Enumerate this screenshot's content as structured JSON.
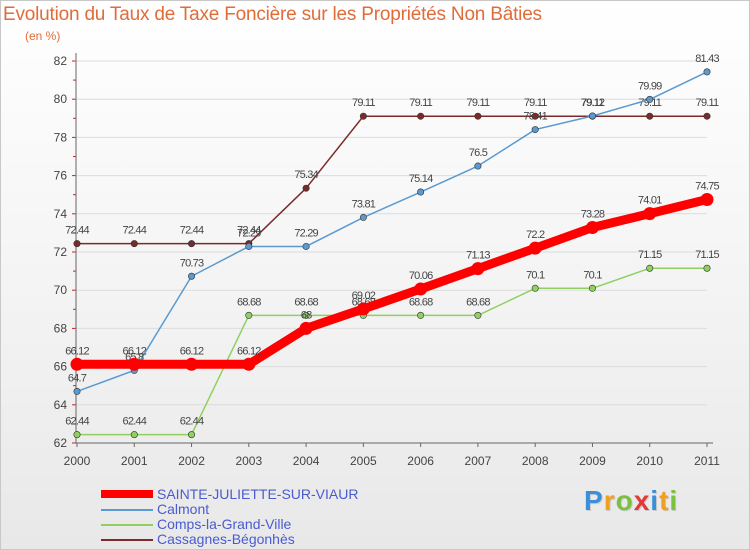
{
  "chart_data": {
    "type": "line",
    "title": "Evolution du Taux de Taxe Foncière sur les Propriétés Non Bâties",
    "unit": "(en %)",
    "xlabel": "",
    "ylabel": "",
    "categories": [
      "2000",
      "2001",
      "2002",
      "2003",
      "2004",
      "2005",
      "2006",
      "2007",
      "2008",
      "2009",
      "2010",
      "2011"
    ],
    "ylim": [
      62,
      82
    ],
    "yticks": [
      62,
      64,
      66,
      68,
      70,
      72,
      74,
      76,
      78,
      80,
      82
    ],
    "grid": "horizontal",
    "series": [
      {
        "name": "Cassagnes-Bégonhès",
        "color": "#7a2a2a",
        "values": [
          72.44,
          72.44,
          72.44,
          72.44,
          75.34,
          79.11,
          79.11,
          79.11,
          79.11,
          79.11,
          79.11,
          79.11
        ],
        "labels": [
          "72.44",
          "72.44",
          "72.44",
          "72.44",
          "75.34",
          "79.11",
          "79.11",
          "79.11",
          "79.11",
          "79.11",
          "79.11",
          "79.11"
        ]
      },
      {
        "name": "Calmont",
        "color": "#5a9ad0",
        "values": [
          64.7,
          65.8,
          70.73,
          72.29,
          72.29,
          73.81,
          75.14,
          76.5,
          78.41,
          79.12,
          79.99,
          81.43
        ],
        "labels": [
          "64.7",
          "65.8",
          "70.73",
          "72.29",
          "72.29",
          "73.81",
          "75.14",
          "76.5",
          "78.41",
          "79.12",
          "79.99",
          "81.43"
        ]
      },
      {
        "name": "Comps-la-Grand-Ville",
        "color": "#90d060",
        "values": [
          62.44,
          62.44,
          62.44,
          68.68,
          68.68,
          68.68,
          68.68,
          68.68,
          70.1,
          70.1,
          71.15,
          71.15
        ],
        "labels": [
          "62.44",
          "62.44",
          "62.44",
          "68.68",
          "68.68",
          "68.68",
          "68.68",
          "68.68",
          "70.1",
          "70.1",
          "71.15",
          "71.15"
        ]
      },
      {
        "name": "SAINTE-JULIETTE-SUR-VIAUR",
        "color": "#ff0000",
        "values": [
          66.12,
          66.12,
          66.12,
          66.12,
          68,
          69.02,
          70.06,
          71.13,
          72.2,
          73.28,
          74.01,
          74.75
        ],
        "labels": [
          "66.12",
          "66.12",
          "66.12",
          "66.12",
          "68",
          "69.02",
          "70.06",
          "71.13",
          "72.2",
          "73.28",
          "74.01",
          "74.75"
        ]
      }
    ],
    "legend": [
      "SAINTE-JULIETTE-SUR-VIAUR",
      "Calmont",
      "Comps-la-Grand-Ville",
      "Cassagnes-Bégonhès"
    ],
    "legend_position": "bottom-left"
  },
  "brand": {
    "letters": [
      "P",
      "r",
      "o",
      "x",
      "i",
      "t",
      "i"
    ],
    "colors": [
      "#3a8fd8",
      "#f0a020",
      "#7cc040",
      "#e03a3a",
      "#3a8fd8",
      "#f0a020",
      "#7cc040"
    ]
  }
}
